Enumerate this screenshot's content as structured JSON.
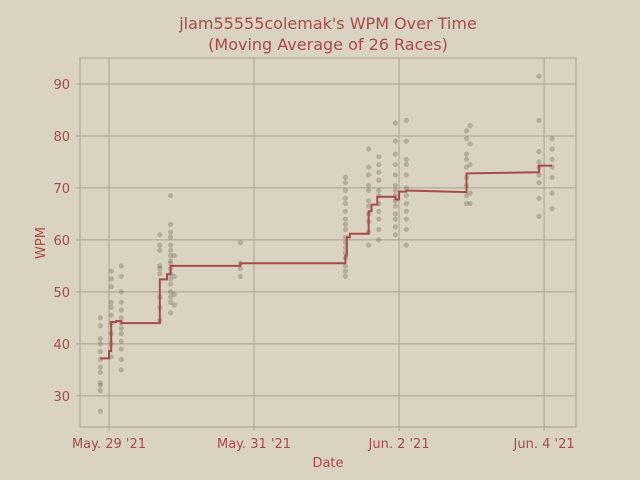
{
  "chart_data": {
    "type": "scatter",
    "title": "jlam55555colemak's WPM Over Time",
    "subtitle": "(Moving Average of 26 Races)",
    "xlabel": "Date",
    "ylabel": "WPM",
    "ylim": [
      24,
      95
    ],
    "yticks": [
      30,
      40,
      50,
      60,
      70,
      80,
      90
    ],
    "xlim_days": [
      -0.4,
      6.44
    ],
    "xticks": [
      {
        "label": "May. 29 '21",
        "day": 0
      },
      {
        "label": "May. 31 '21",
        "day": 2
      },
      {
        "label": "Jun. 2 '21",
        "day": 4
      },
      {
        "label": "Jun. 4 '21",
        "day": 6
      }
    ],
    "grid": true,
    "colors": {
      "background": "#dbd3c1",
      "line": "#a94a4a",
      "points": "#4d4a3e",
      "grid": "#aaa291",
      "text": "#a94a4a"
    },
    "series": [
      {
        "kind": "races",
        "points": [
          [
            -0.12,
            27
          ],
          [
            -0.12,
            31
          ],
          [
            -0.12,
            32
          ],
          [
            -0.12,
            32.5
          ],
          [
            -0.12,
            34.5
          ],
          [
            -0.12,
            35.5
          ],
          [
            -0.12,
            37
          ],
          [
            -0.12,
            38.5
          ],
          [
            -0.12,
            40
          ],
          [
            -0.12,
            41
          ],
          [
            -0.12,
            43.5
          ],
          [
            -0.12,
            45
          ],
          [
            0.03,
            37.5
          ],
          [
            0.03,
            40
          ],
          [
            0.03,
            42
          ],
          [
            0.03,
            44
          ],
          [
            0.03,
            45.5
          ],
          [
            0.03,
            47
          ],
          [
            0.03,
            48
          ],
          [
            0.03,
            51
          ],
          [
            0.03,
            52.5
          ],
          [
            0.03,
            54
          ],
          [
            0.17,
            35
          ],
          [
            0.17,
            37
          ],
          [
            0.17,
            39
          ],
          [
            0.17,
            40.5
          ],
          [
            0.17,
            42
          ],
          [
            0.17,
            43
          ],
          [
            0.17,
            44
          ],
          [
            0.17,
            45
          ],
          [
            0.17,
            46.5
          ],
          [
            0.17,
            48
          ],
          [
            0.17,
            50
          ],
          [
            0.17,
            53
          ],
          [
            0.17,
            55
          ],
          [
            0.7,
            44.5
          ],
          [
            0.7,
            47
          ],
          [
            0.7,
            49
          ],
          [
            0.7,
            53.5
          ],
          [
            0.7,
            54.5
          ],
          [
            0.7,
            55
          ],
          [
            0.7,
            58
          ],
          [
            0.7,
            59
          ],
          [
            0.7,
            61
          ],
          [
            0.85,
            46
          ],
          [
            0.85,
            48
          ],
          [
            0.85,
            49
          ],
          [
            0.85,
            50
          ],
          [
            0.85,
            51.5
          ],
          [
            0.85,
            52.5
          ],
          [
            0.85,
            53.5
          ],
          [
            0.85,
            54.5
          ],
          [
            0.85,
            55.5
          ],
          [
            0.85,
            56
          ],
          [
            0.85,
            57
          ],
          [
            0.85,
            58
          ],
          [
            0.85,
            59
          ],
          [
            0.85,
            60.5
          ],
          [
            0.85,
            61.5
          ],
          [
            0.85,
            63
          ],
          [
            0.85,
            68.5
          ],
          [
            0.9,
            47.5
          ],
          [
            0.9,
            49.5
          ],
          [
            0.9,
            53
          ],
          [
            0.9,
            57
          ],
          [
            1.81,
            53
          ],
          [
            1.81,
            54.5
          ],
          [
            1.81,
            55.5
          ],
          [
            1.81,
            59.5
          ],
          [
            3.26,
            53
          ],
          [
            3.26,
            54
          ],
          [
            3.26,
            55
          ],
          [
            3.26,
            56.5
          ],
          [
            3.26,
            57.5
          ],
          [
            3.26,
            58.5
          ],
          [
            3.26,
            59.5
          ],
          [
            3.26,
            60.5
          ],
          [
            3.26,
            62
          ],
          [
            3.26,
            63
          ],
          [
            3.26,
            64
          ],
          [
            3.26,
            65.5
          ],
          [
            3.26,
            67
          ],
          [
            3.26,
            68
          ],
          [
            3.26,
            69.5
          ],
          [
            3.26,
            71
          ],
          [
            3.26,
            72
          ],
          [
            3.58,
            59
          ],
          [
            3.58,
            61.5
          ],
          [
            3.58,
            63.5
          ],
          [
            3.58,
            65
          ],
          [
            3.58,
            66.5
          ],
          [
            3.58,
            67.5
          ],
          [
            3.58,
            69.5
          ],
          [
            3.58,
            70.5
          ],
          [
            3.58,
            72.5
          ],
          [
            3.58,
            74
          ],
          [
            3.58,
            77.5
          ],
          [
            3.72,
            60
          ],
          [
            3.72,
            62
          ],
          [
            3.72,
            64
          ],
          [
            3.72,
            65.5
          ],
          [
            3.72,
            67
          ],
          [
            3.72,
            68.5
          ],
          [
            3.72,
            69.5
          ],
          [
            3.72,
            71.5
          ],
          [
            3.72,
            73
          ],
          [
            3.72,
            74.5
          ],
          [
            3.72,
            76
          ],
          [
            3.95,
            61
          ],
          [
            3.95,
            62.5
          ],
          [
            3.95,
            64
          ],
          [
            3.95,
            65
          ],
          [
            3.95,
            66.5
          ],
          [
            3.95,
            67.5
          ],
          [
            3.95,
            68.5
          ],
          [
            3.95,
            69.5
          ],
          [
            3.95,
            70.5
          ],
          [
            3.95,
            72.5
          ],
          [
            3.95,
            74.5
          ],
          [
            3.95,
            76.5
          ],
          [
            3.95,
            79
          ],
          [
            3.95,
            82.5
          ],
          [
            4.1,
            59
          ],
          [
            4.1,
            62
          ],
          [
            4.1,
            64
          ],
          [
            4.1,
            65.5
          ],
          [
            4.1,
            67
          ],
          [
            4.1,
            68.5
          ],
          [
            4.1,
            70
          ],
          [
            4.1,
            72.5
          ],
          [
            4.1,
            74.5
          ],
          [
            4.1,
            75.5
          ],
          [
            4.1,
            79
          ],
          [
            4.1,
            83
          ],
          [
            4.93,
            67
          ],
          [
            4.93,
            68.5
          ],
          [
            4.93,
            70.5
          ],
          [
            4.93,
            72
          ],
          [
            4.93,
            74
          ],
          [
            4.93,
            75.5
          ],
          [
            4.93,
            76.5
          ],
          [
            4.93,
            79.5
          ],
          [
            4.93,
            81
          ],
          [
            4.98,
            67
          ],
          [
            4.98,
            69
          ],
          [
            4.98,
            74.5
          ],
          [
            4.98,
            78.5
          ],
          [
            4.98,
            82
          ],
          [
            5.93,
            64.5
          ],
          [
            5.93,
            68
          ],
          [
            5.93,
            71
          ],
          [
            5.93,
            72.5
          ],
          [
            5.93,
            74
          ],
          [
            5.93,
            75
          ],
          [
            5.93,
            77
          ],
          [
            5.93,
            83
          ],
          [
            5.93,
            91.5
          ],
          [
            6.11,
            66
          ],
          [
            6.11,
            69
          ],
          [
            6.11,
            72
          ],
          [
            6.11,
            74
          ],
          [
            6.11,
            75.5
          ],
          [
            6.11,
            77.5
          ],
          [
            6.11,
            79.5
          ]
        ]
      },
      {
        "kind": "moving-average",
        "points": [
          [
            -0.12,
            37.2
          ],
          [
            0.0,
            37.2
          ],
          [
            0.0,
            38.6
          ],
          [
            0.03,
            38.6
          ],
          [
            0.03,
            44.2
          ],
          [
            0.1,
            44.2
          ],
          [
            0.1,
            44.4
          ],
          [
            0.17,
            44.4
          ],
          [
            0.17,
            44
          ],
          [
            0.7,
            44
          ],
          [
            0.7,
            52.4
          ],
          [
            0.8,
            52.4
          ],
          [
            0.8,
            53.4
          ],
          [
            0.85,
            53.4
          ],
          [
            0.85,
            55
          ],
          [
            1.81,
            55
          ],
          [
            1.81,
            55.5
          ],
          [
            3.26,
            55.5
          ],
          [
            3.26,
            57
          ],
          [
            3.28,
            57
          ],
          [
            3.28,
            60.5
          ],
          [
            3.32,
            60.5
          ],
          [
            3.32,
            61.2
          ],
          [
            3.58,
            61.2
          ],
          [
            3.58,
            65.5
          ],
          [
            3.62,
            65.5
          ],
          [
            3.62,
            66.8
          ],
          [
            3.7,
            66.8
          ],
          [
            3.7,
            68.3
          ],
          [
            3.95,
            68.3
          ],
          [
            3.95,
            67.8
          ],
          [
            4.0,
            67.8
          ],
          [
            4.0,
            69.3
          ],
          [
            4.1,
            69.3
          ],
          [
            4.1,
            69.5
          ],
          [
            4.93,
            69.2
          ],
          [
            4.93,
            72.8
          ],
          [
            5.93,
            73
          ],
          [
            5.93,
            74.3
          ],
          [
            6.11,
            74.3
          ]
        ]
      }
    ]
  }
}
